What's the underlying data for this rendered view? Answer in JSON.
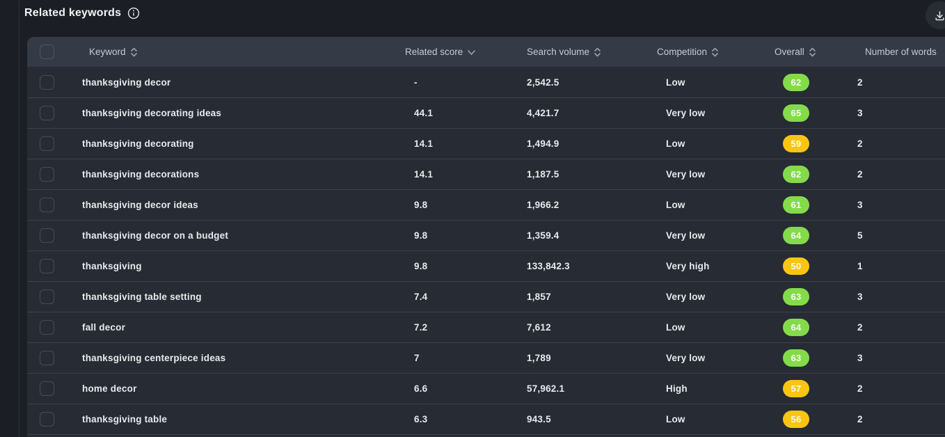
{
  "page": {
    "title": "Related keywords"
  },
  "table": {
    "columns": [
      {
        "key": "keyword",
        "label": "Keyword",
        "sort": "both"
      },
      {
        "key": "related_score",
        "label": "Related score",
        "sort": "desc"
      },
      {
        "key": "search_volume",
        "label": "Search volume",
        "sort": "both"
      },
      {
        "key": "competition",
        "label": "Competition",
        "sort": "both"
      },
      {
        "key": "overall",
        "label": "Overall",
        "sort": "both"
      },
      {
        "key": "words",
        "label": "Number of words",
        "sort": "none"
      }
    ],
    "rows": [
      {
        "keyword": "thanksgiving decor",
        "related_score": "-",
        "search_volume": "2,542.5",
        "competition": "Low",
        "overall": 62,
        "overall_level": "green",
        "words": 2
      },
      {
        "keyword": "thanksgiving decorating ideas",
        "related_score": "44.1",
        "search_volume": "4,421.7",
        "competition": "Very low",
        "overall": 65,
        "overall_level": "green",
        "words": 3
      },
      {
        "keyword": "thanksgiving decorating",
        "related_score": "14.1",
        "search_volume": "1,494.9",
        "competition": "Low",
        "overall": 59,
        "overall_level": "yellow",
        "words": 2
      },
      {
        "keyword": "thanksgiving decorations",
        "related_score": "14.1",
        "search_volume": "1,187.5",
        "competition": "Very low",
        "overall": 62,
        "overall_level": "green",
        "words": 2
      },
      {
        "keyword": "thanksgiving decor ideas",
        "related_score": "9.8",
        "search_volume": "1,966.2",
        "competition": "Low",
        "overall": 61,
        "overall_level": "green",
        "words": 3
      },
      {
        "keyword": "thanksgiving decor on a budget",
        "related_score": "9.8",
        "search_volume": "1,359.4",
        "competition": "Very low",
        "overall": 64,
        "overall_level": "green",
        "words": 5
      },
      {
        "keyword": "thanksgiving",
        "related_score": "9.8",
        "search_volume": "133,842.3",
        "competition": "Very high",
        "overall": 50,
        "overall_level": "yellow",
        "words": 1
      },
      {
        "keyword": "thanksgiving table setting",
        "related_score": "7.4",
        "search_volume": "1,857",
        "competition": "Very low",
        "overall": 63,
        "overall_level": "green",
        "words": 3
      },
      {
        "keyword": "fall decor",
        "related_score": "7.2",
        "search_volume": "7,612",
        "competition": "Low",
        "overall": 64,
        "overall_level": "green",
        "words": 2
      },
      {
        "keyword": "thanksgiving centerpiece ideas",
        "related_score": "7",
        "search_volume": "1,789",
        "competition": "Very low",
        "overall": 63,
        "overall_level": "green",
        "words": 3
      },
      {
        "keyword": "home decor",
        "related_score": "6.6",
        "search_volume": "57,962.1",
        "competition": "High",
        "overall": 57,
        "overall_level": "yellow",
        "words": 2
      },
      {
        "keyword": "thanksgiving table",
        "related_score": "6.3",
        "search_volume": "943.5",
        "competition": "Low",
        "overall": 56,
        "overall_level": "yellow",
        "words": 2
      }
    ]
  },
  "colors": {
    "badge_green": "#84db4a",
    "badge_yellow": "#f8c513",
    "header_bg": "#343a46",
    "row_bg": "#272b33"
  }
}
